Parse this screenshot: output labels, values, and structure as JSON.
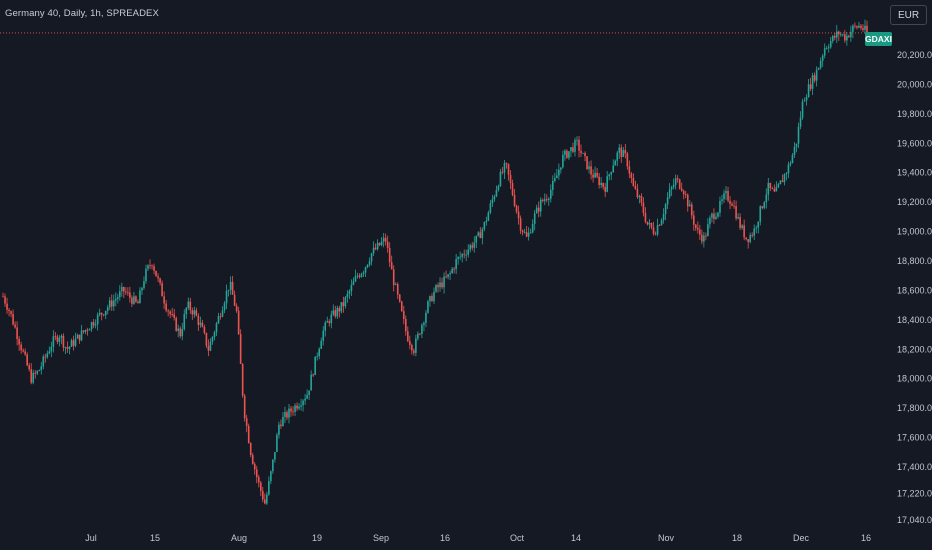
{
  "header": {
    "title": "Germany 40, Daily, 1h, SPREADEX",
    "currency": "EUR"
  },
  "colors": {
    "background": "#151924",
    "up": "#26a69a",
    "down": "#ef5350",
    "price_line": "#ef5350",
    "tag": "#1a9a83"
  },
  "chart_data": {
    "type": "candlestick",
    "symbol_tag": "GDAXI",
    "last_price": 20350,
    "ylim": [
      17040,
      20440
    ],
    "y_ticks": [
      "17,040.0",
      "17,220.0",
      "17,400.0",
      "17,600.0",
      "17,800.0",
      "18,000.0",
      "18,200.0",
      "18,400.0",
      "18,600.0",
      "18,800.0",
      "19,000.0",
      "19,200.0",
      "19,400.0",
      "19,600.0",
      "19,800.0",
      "20,000.0",
      "20,200.0"
    ],
    "x_ticks": [
      "Jul",
      "15",
      "Aug",
      "19",
      "Sep",
      "16",
      "Oct",
      "14",
      "Nov",
      "18",
      "Dec",
      "16"
    ],
    "series_close_approx": [
      18560,
      18450,
      18300,
      18150,
      18000,
      18050,
      18150,
      18250,
      18300,
      18200,
      18250,
      18300,
      18350,
      18400,
      18450,
      18500,
      18550,
      18600,
      18550,
      18500,
      18700,
      18800,
      18650,
      18500,
      18400,
      18300,
      18500,
      18450,
      18350,
      18200,
      18350,
      18500,
      18650,
      18450,
      17800,
      17500,
      17300,
      17150,
      17400,
      17700,
      17750,
      17800,
      17850,
      17900,
      18100,
      18300,
      18400,
      18450,
      18500,
      18600,
      18700,
      18750,
      18850,
      18900,
      18950,
      18700,
      18500,
      18300,
      18200,
      18350,
      18500,
      18600,
      18650,
      18700,
      18800,
      18850,
      18900,
      18950,
      19050,
      19200,
      19350,
      19450,
      19250,
      19050,
      18950,
      19100,
      19200,
      19250,
      19350,
      19500,
      19550,
      19600,
      19500,
      19400,
      19350,
      19300,
      19450,
      19550,
      19500,
      19300,
      19200,
      19050,
      19000,
      19100,
      19250,
      19350,
      19300,
      19150,
      19000,
      18950,
      19100,
      19150,
      19250,
      19200,
      19050,
      18950,
      19000,
      19150,
      19300,
      19250,
      19350,
      19450,
      19600,
      19900,
      20000,
      20100,
      20250,
      20300,
      20350,
      20320,
      20380,
      20400,
      20350
    ]
  }
}
